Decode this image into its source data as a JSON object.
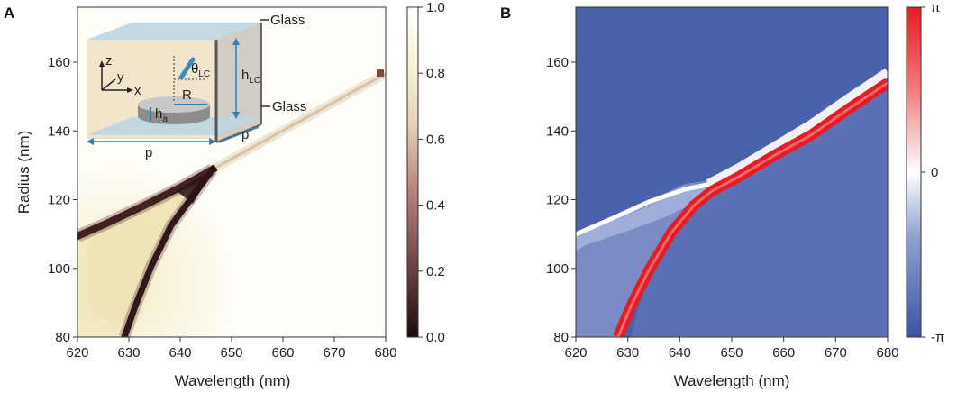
{
  "chart_data": [
    {
      "panel": "A",
      "type": "heatmap",
      "quantity": "transmittance",
      "xlabel": "Wavelength (nm)",
      "ylabel": "Radius (nm)",
      "xlim": [
        620,
        680
      ],
      "ylim": [
        80,
        176
      ],
      "xticks": [
        620,
        630,
        640,
        650,
        660,
        670,
        680
      ],
      "yticks": [
        80,
        100,
        120,
        140,
        160
      ],
      "colorbar": {
        "range": [
          0,
          1
        ],
        "ticks": [
          "0.0",
          "0.2",
          "0.4",
          "0.6",
          "0.8",
          "1.0"
        ],
        "colors": [
          "#1a0b0d",
          "#6a3e3e",
          "#b8847f",
          "#e6d2b8",
          "#f6f1d4",
          "#ffffff"
        ]
      },
      "features": {
        "upper_resonance": {
          "start": [
            620,
            110
          ],
          "knee": [
            646,
            126
          ],
          "end": [
            680,
            158
          ]
        },
        "lower_resonance": {
          "start": [
            627,
            80
          ],
          "end": [
            646,
            126
          ]
        },
        "min_value": 0.0
      },
      "inset": {
        "glass_top": "Glass",
        "glass_bottom": "Glass",
        "theta": "θ",
        "theta_sub": "LC",
        "height": "h",
        "height_sub": "LC",
        "radius": "R",
        "disk_height": "h",
        "disk_height_sub": "a",
        "period_x": "p",
        "period_y": "p",
        "axis_z": "z",
        "axis_y": "y",
        "axis_x": "x"
      }
    },
    {
      "panel": "B",
      "type": "heatmap",
      "quantity": "phase",
      "xlabel": "Wavelength (nm)",
      "ylabel": "",
      "xlim": [
        620,
        680
      ],
      "ylim": [
        80,
        176
      ],
      "xticks": [
        620,
        630,
        640,
        650,
        660,
        670,
        680
      ],
      "yticks": [
        80,
        100,
        120,
        140,
        160
      ],
      "colorbar": {
        "range": [
          "-π",
          "π"
        ],
        "ticks": [
          "-π",
          "0",
          "π"
        ],
        "colors": [
          "#3a55a4",
          "#ffffff",
          "#e51c23"
        ]
      },
      "features": {
        "white_branch": {
          "start": [
            620,
            111
          ],
          "end": [
            646,
            125
          ]
        },
        "red_branch": {
          "start": [
            628,
            80
          ],
          "knee": [
            646,
            125
          ],
          "end": [
            680,
            158
          ]
        }
      }
    }
  ]
}
